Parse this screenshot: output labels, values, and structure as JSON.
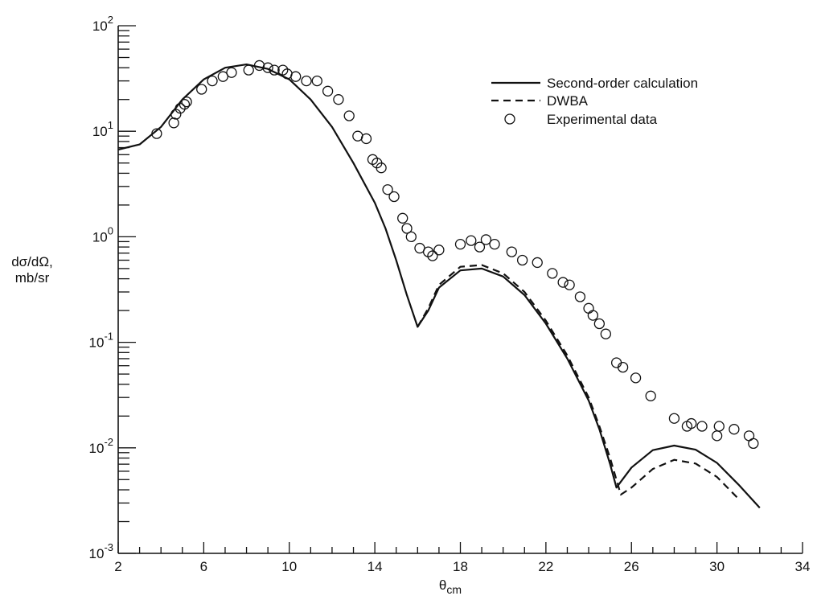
{
  "chart_data": {
    "type": "line",
    "title": "",
    "xlabel": "θcm",
    "ylabel": [
      "dσ/dΩ,",
      "mb/sr"
    ],
    "xlim": [
      2,
      34
    ],
    "ylim": [
      0.001,
      100
    ],
    "yscale": "log",
    "grid": false,
    "legend_position": "top-right",
    "x_ticks": [
      2,
      6,
      10,
      14,
      18,
      22,
      26,
      30,
      34
    ],
    "y_ticks": [
      {
        "value": 0.001,
        "base": "10",
        "exp": "-3"
      },
      {
        "value": 0.01,
        "base": "10",
        "exp": "-2"
      },
      {
        "value": 0.1,
        "base": "10",
        "exp": "-1"
      },
      {
        "value": 1,
        "base": "10",
        "exp": "0"
      },
      {
        "value": 10,
        "base": "10",
        "exp": "1"
      },
      {
        "value": 100,
        "base": "10",
        "exp": "2"
      }
    ],
    "series": [
      {
        "name": "Second-order calculation",
        "style": "solid",
        "x": [
          2,
          3,
          4,
          5,
          6,
          7,
          8,
          9,
          10,
          11,
          12,
          13,
          14,
          14.5,
          15,
          15.5,
          16,
          16.5,
          17,
          18,
          19,
          20,
          21,
          22,
          23,
          24,
          24.5,
          25,
          25.3,
          26,
          27,
          28,
          29,
          30,
          31,
          32
        ],
        "y": [
          6.7,
          7.5,
          11,
          20,
          31,
          40,
          43,
          39,
          31,
          20,
          11,
          5,
          2.1,
          1.2,
          0.6,
          0.28,
          0.14,
          0.2,
          0.33,
          0.48,
          0.5,
          0.42,
          0.28,
          0.15,
          0.07,
          0.028,
          0.015,
          0.007,
          0.0042,
          0.0065,
          0.0095,
          0.0105,
          0.0096,
          0.0072,
          0.0045,
          0.0027
        ]
      },
      {
        "name": "DWBA",
        "style": "dashed",
        "x": [
          16,
          16.5,
          17,
          18,
          19,
          20,
          21,
          22,
          23,
          24,
          24.5,
          25,
          25.5,
          26,
          27,
          28,
          29,
          30,
          31
        ],
        "y": [
          0.14,
          0.21,
          0.35,
          0.52,
          0.54,
          0.45,
          0.3,
          0.16,
          0.075,
          0.03,
          0.016,
          0.008,
          0.0036,
          0.0042,
          0.0063,
          0.0077,
          0.0071,
          0.0053,
          0.0033
        ]
      },
      {
        "name": "Experimental data",
        "style": "markers",
        "x": [
          3.8,
          4.6,
          4.7,
          4.9,
          5.1,
          5.2,
          5.9,
          6.4,
          6.9,
          7.3,
          8.1,
          8.6,
          9.0,
          9.3,
          9.7,
          9.9,
          10.3,
          10.8,
          11.3,
          11.8,
          12.3,
          12.8,
          13.2,
          13.6,
          13.9,
          14.1,
          14.3,
          14.6,
          14.9,
          15.3,
          15.5,
          15.7,
          16.1,
          16.5,
          16.7,
          17.0,
          18.0,
          18.5,
          18.9,
          19.2,
          19.6,
          20.4,
          20.9,
          21.6,
          22.3,
          22.8,
          23.1,
          23.6,
          24.0,
          24.2,
          24.5,
          24.8,
          25.3,
          25.6,
          26.2,
          26.9,
          28.0,
          28.6,
          28.8,
          29.3,
          30.0,
          30.1,
          30.8,
          31.5,
          31.7
        ],
        "y": [
          9.5,
          12,
          14.5,
          16.5,
          18,
          19,
          25,
          30,
          33,
          36,
          38,
          42,
          40,
          38,
          38,
          35,
          33,
          30,
          30,
          24,
          20,
          14,
          9,
          8.5,
          5.4,
          5,
          4.5,
          2.8,
          2.4,
          1.5,
          1.2,
          1.0,
          0.78,
          0.72,
          0.66,
          0.75,
          0.85,
          0.92,
          0.8,
          0.94,
          0.85,
          0.72,
          0.6,
          0.57,
          0.45,
          0.37,
          0.35,
          0.27,
          0.21,
          0.18,
          0.15,
          0.12,
          0.064,
          0.058,
          0.046,
          0.031,
          0.019,
          0.016,
          0.017,
          0.016,
          0.013,
          0.016,
          0.015,
          0.013,
          0.011
        ]
      }
    ]
  }
}
